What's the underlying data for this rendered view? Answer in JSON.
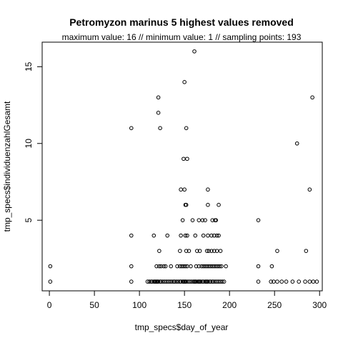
{
  "chart_data": {
    "type": "scatter",
    "title": "Petromyzon marinus  5 highest values removed",
    "subtitle": "maximum value: 16  //  minimum value: 1  // sampling points: 193",
    "xlabel": "tmp_specs$day_of_year",
    "ylabel": "tmp_specs$individuenzahlGesamt",
    "xlim": [
      -8,
      303
    ],
    "ylim": [
      0.4,
      16.6
    ],
    "xticks": [
      "0",
      "50",
      "100",
      "150",
      "200",
      "250",
      "300"
    ],
    "yticks": [
      "5",
      "10",
      "15"
    ],
    "xtick_values": [
      0,
      50,
      100,
      150,
      200,
      250,
      300
    ],
    "ytick_values": [
      5,
      10,
      15
    ],
    "grid": false,
    "marker": "open-circle",
    "points": [
      [
        1,
        1
      ],
      [
        1,
        2
      ],
      [
        91,
        1
      ],
      [
        91,
        2
      ],
      [
        91,
        4
      ],
      [
        91,
        11
      ],
      [
        109,
        1
      ],
      [
        111,
        1
      ],
      [
        113,
        1
      ],
      [
        114,
        1
      ],
      [
        116,
        1
      ],
      [
        117,
        1
      ],
      [
        118,
        1
      ],
      [
        119,
        1
      ],
      [
        120,
        1
      ],
      [
        121,
        1
      ],
      [
        123,
        1
      ],
      [
        124,
        1
      ],
      [
        126,
        1
      ],
      [
        128,
        1
      ],
      [
        130,
        1
      ],
      [
        132,
        1
      ],
      [
        134,
        1
      ],
      [
        136,
        1
      ],
      [
        138,
        1
      ],
      [
        139,
        1
      ],
      [
        141,
        1
      ],
      [
        143,
        1
      ],
      [
        145,
        1
      ],
      [
        146,
        1
      ],
      [
        148,
        1
      ],
      [
        149,
        1
      ],
      [
        150,
        1
      ],
      [
        151,
        1
      ],
      [
        152,
        1
      ],
      [
        154,
        1
      ],
      [
        156,
        1
      ],
      [
        158,
        1
      ],
      [
        160,
        1
      ],
      [
        161,
        1
      ],
      [
        162,
        1
      ],
      [
        163,
        1
      ],
      [
        165,
        1
      ],
      [
        166,
        1
      ],
      [
        167,
        1
      ],
      [
        168,
        1
      ],
      [
        170,
        1
      ],
      [
        171,
        1
      ],
      [
        173,
        1
      ],
      [
        174,
        1
      ],
      [
        175,
        1
      ],
      [
        176,
        1
      ],
      [
        178,
        1
      ],
      [
        179,
        1
      ],
      [
        181,
        1
      ],
      [
        182,
        1
      ],
      [
        184,
        1
      ],
      [
        186,
        1
      ],
      [
        188,
        1
      ],
      [
        190,
        1
      ],
      [
        192,
        1
      ],
      [
        194,
        1
      ],
      [
        232,
        1
      ],
      [
        246,
        1
      ],
      [
        249,
        1
      ],
      [
        253,
        1
      ],
      [
        258,
        1
      ],
      [
        263,
        1
      ],
      [
        270,
        1
      ],
      [
        277,
        1
      ],
      [
        284,
        1
      ],
      [
        289,
        1
      ],
      [
        293,
        1
      ],
      [
        297,
        1
      ],
      [
        119,
        2
      ],
      [
        122,
        2
      ],
      [
        124,
        2
      ],
      [
        127,
        2
      ],
      [
        129,
        2
      ],
      [
        135,
        2
      ],
      [
        142,
        2
      ],
      [
        145,
        2
      ],
      [
        147,
        2
      ],
      [
        149,
        2
      ],
      [
        151,
        2
      ],
      [
        153,
        2
      ],
      [
        157,
        2
      ],
      [
        163,
        2
      ],
      [
        166,
        2
      ],
      [
        169,
        2
      ],
      [
        171,
        2
      ],
      [
        173,
        2
      ],
      [
        175,
        2
      ],
      [
        177,
        2
      ],
      [
        179,
        2
      ],
      [
        181,
        2
      ],
      [
        183,
        2
      ],
      [
        185,
        2
      ],
      [
        187,
        2
      ],
      [
        189,
        2
      ],
      [
        191,
        2
      ],
      [
        196,
        2
      ],
      [
        232,
        2
      ],
      [
        247,
        2
      ],
      [
        122,
        3
      ],
      [
        145,
        3
      ],
      [
        152,
        3
      ],
      [
        155,
        3
      ],
      [
        164,
        3
      ],
      [
        167,
        3
      ],
      [
        175,
        3
      ],
      [
        177,
        3
      ],
      [
        180,
        3
      ],
      [
        183,
        3
      ],
      [
        186,
        3
      ],
      [
        190,
        3
      ],
      [
        253,
        3
      ],
      [
        285,
        3
      ],
      [
        116,
        4
      ],
      [
        131,
        4
      ],
      [
        146,
        4
      ],
      [
        151,
        4
      ],
      [
        153,
        4
      ],
      [
        162,
        4
      ],
      [
        171,
        4
      ],
      [
        176,
        4
      ],
      [
        180,
        4
      ],
      [
        183,
        4
      ],
      [
        186,
        4
      ],
      [
        188,
        4
      ],
      [
        148,
        5
      ],
      [
        159,
        5
      ],
      [
        166,
        5
      ],
      [
        170,
        5
      ],
      [
        173,
        5
      ],
      [
        181,
        5
      ],
      [
        184,
        5
      ],
      [
        185,
        5
      ],
      [
        232,
        5
      ],
      [
        151,
        6
      ],
      [
        152,
        6
      ],
      [
        176,
        6
      ],
      [
        188,
        6
      ],
      [
        146,
        7
      ],
      [
        150,
        7
      ],
      [
        176,
        7
      ],
      [
        289,
        7
      ],
      [
        149,
        9
      ],
      [
        153,
        9
      ],
      [
        123,
        11
      ],
      [
        152,
        11
      ],
      [
        121,
        12
      ],
      [
        121,
        13
      ],
      [
        292,
        13
      ],
      [
        150,
        14
      ],
      [
        161,
        16
      ],
      [
        275,
        10
      ]
    ]
  }
}
